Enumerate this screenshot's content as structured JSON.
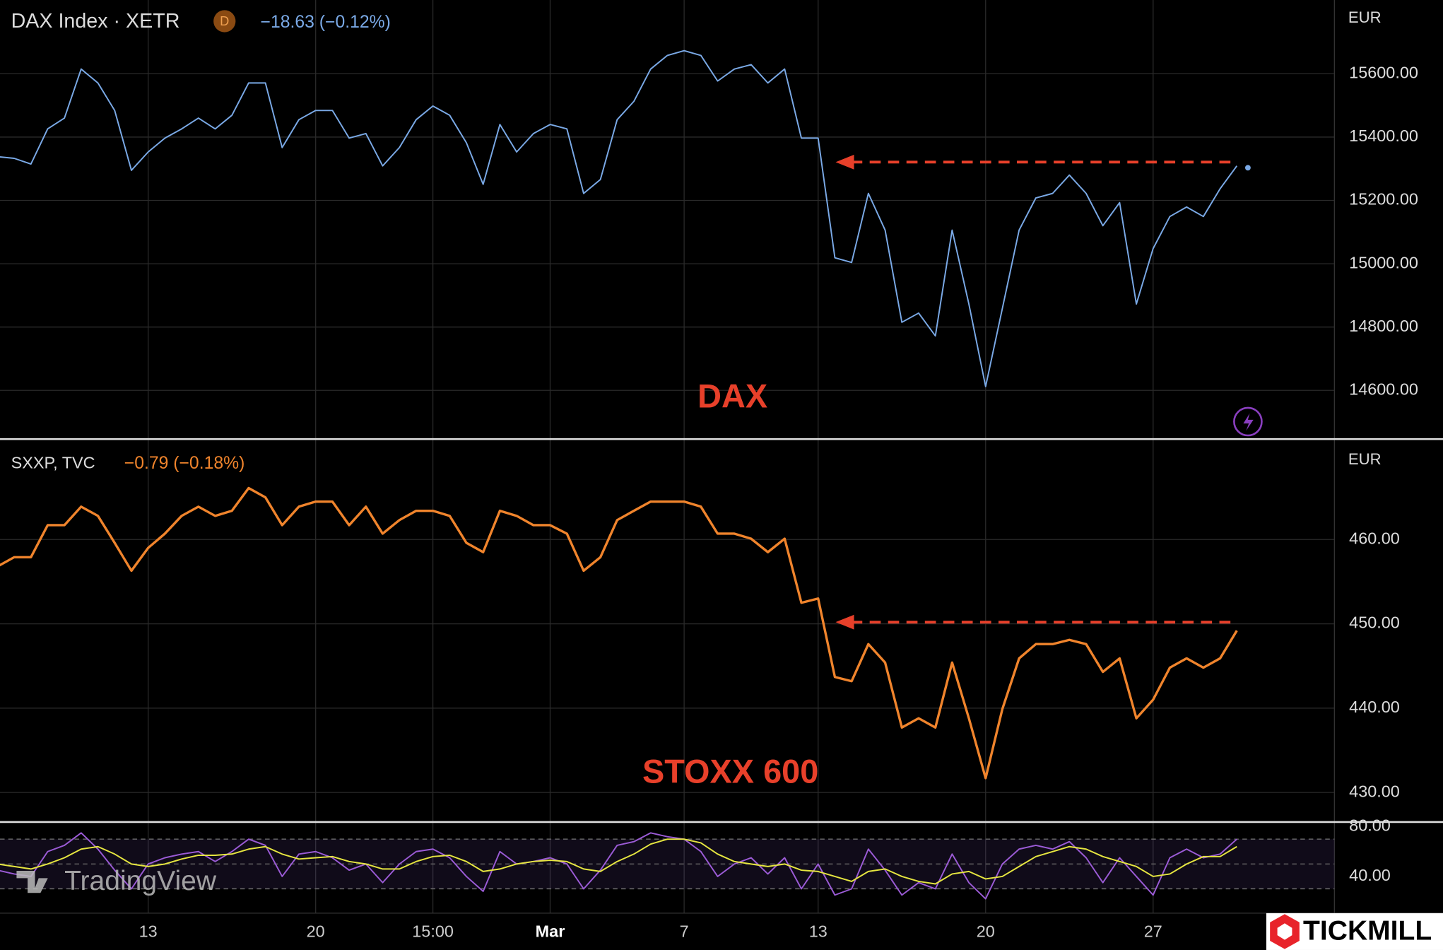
{
  "watermark": "TradingView",
  "logo": "TICKMILL",
  "chart_data": [
    {
      "type": "line",
      "title": "DAX Index · XETR",
      "badge": "D",
      "change": "−18.63 (−0.12%)",
      "annotation": "DAX",
      "currency": "EUR",
      "ylim": [
        14449,
        15833
      ],
      "yticks": [
        {
          "value": 14600,
          "label": "14600.00"
        },
        {
          "value": 14800,
          "label": "14800.00"
        },
        {
          "value": 15000,
          "label": "15000.00"
        },
        {
          "value": 15200,
          "label": "15200.00"
        },
        {
          "value": 15400,
          "label": "15400.00"
        },
        {
          "value": 15600,
          "label": "15600.00"
        }
      ],
      "arrow_level": 15321,
      "grid": true,
      "series": [
        {
          "color": "#7aa9e6",
          "values": [
            15338,
            15333,
            15315,
            15426,
            15460,
            15615,
            15571,
            15484,
            15295,
            15353,
            15397,
            15426,
            15460,
            15426,
            15469,
            15571,
            15571,
            15367,
            15455,
            15484,
            15484,
            15397,
            15411,
            15309,
            15367,
            15455,
            15498,
            15469,
            15382,
            15251,
            15440,
            15353,
            15411,
            15440,
            15426,
            15222,
            15266,
            15455,
            15513,
            15615,
            15658,
            15673,
            15658,
            15577,
            15615,
            15629,
            15571,
            15615,
            15397,
            15397,
            15019,
            15004,
            15222,
            15106,
            14815,
            14844,
            14772,
            15106,
            14873,
            14612,
            14859,
            15106,
            15208,
            15222,
            15280,
            15222,
            15120,
            15193,
            14873,
            15048,
            15149,
            15179,
            15149,
            15237,
            15309
          ]
        }
      ]
    },
    {
      "type": "line",
      "title": "SXXP, TVC",
      "change": "−0.79 (−0.18%)",
      "annotation": "STOXX 600",
      "currency": "EUR",
      "ylim": [
        426.6,
        471.8
      ],
      "yticks": [
        {
          "value": 430,
          "label": "430.00"
        },
        {
          "value": 440,
          "label": "440.00"
        },
        {
          "value": 450,
          "label": "450.00"
        },
        {
          "value": 460,
          "label": "460.00"
        }
      ],
      "arrow_level": 450.2,
      "grid": true,
      "series": [
        {
          "color": "#f0842c",
          "values": [
            456.8,
            457.9,
            457.9,
            461.7,
            461.7,
            463.9,
            462.8,
            459.6,
            456.3,
            459.0,
            460.7,
            462.8,
            463.9,
            462.8,
            463.4,
            466.1,
            465.0,
            461.7,
            463.9,
            464.5,
            464.5,
            461.7,
            463.9,
            460.7,
            462.3,
            463.4,
            463.4,
            462.8,
            459.6,
            458.5,
            463.4,
            462.8,
            461.7,
            461.7,
            460.7,
            456.3,
            457.9,
            462.3,
            463.4,
            464.5,
            464.5,
            464.5,
            463.9,
            460.7,
            460.7,
            460.1,
            458.5,
            460.1,
            452.5,
            453.0,
            443.7,
            443.2,
            447.6,
            445.4,
            437.7,
            438.8,
            437.7,
            445.4,
            438.8,
            431.7,
            439.9,
            445.9,
            447.6,
            447.6,
            448.1,
            447.6,
            444.3,
            445.9,
            438.8,
            441.0,
            444.8,
            445.9,
            444.8,
            445.9,
            449.2
          ]
        }
      ]
    },
    {
      "type": "line",
      "ylim": [
        11.9,
        83
      ],
      "yticks": [
        {
          "value": 40,
          "label": "40.00"
        },
        {
          "value": 80,
          "label": "80.00"
        }
      ],
      "band": [
        30,
        70
      ],
      "midline": 50,
      "categories": [
        null,
        null,
        null,
        null,
        null,
        null,
        null,
        null,
        null,
        "13",
        null,
        null,
        null,
        null,
        null,
        null,
        null,
        null,
        null,
        "20",
        null,
        null,
        null,
        null,
        null,
        null,
        "15:00",
        null,
        null,
        null,
        null,
        null,
        null,
        "Mar",
        null,
        null,
        null,
        null,
        null,
        null,
        null,
        "7",
        null,
        null,
        null,
        null,
        null,
        null,
        null,
        "13",
        null,
        null,
        null,
        null,
        null,
        null,
        null,
        null,
        null,
        "20",
        null,
        null,
        null,
        null,
        null,
        null,
        null,
        null,
        null,
        "27",
        null,
        null,
        null,
        null,
        null
      ],
      "series": [
        {
          "color": "#9b5bd6",
          "values": [
            45,
            42,
            40,
            60,
            65,
            75,
            62,
            45,
            30,
            50,
            55,
            58,
            60,
            52,
            60,
            70,
            65,
            40,
            58,
            60,
            55,
            45,
            50,
            35,
            50,
            60,
            62,
            55,
            40,
            28,
            60,
            50,
            52,
            55,
            50,
            30,
            45,
            65,
            68,
            75,
            72,
            70,
            60,
            40,
            50,
            55,
            42,
            55,
            30,
            50,
            25,
            30,
            62,
            45,
            25,
            35,
            30,
            58,
            35,
            22,
            50,
            62,
            65,
            62,
            68,
            55,
            35,
            55,
            40,
            25,
            55,
            62,
            55,
            58,
            70
          ]
        },
        {
          "color": "#e6e640",
          "values": [
            50,
            48,
            46,
            50,
            55,
            62,
            64,
            58,
            50,
            48,
            50,
            54,
            57,
            57,
            58,
            62,
            64,
            58,
            54,
            55,
            56,
            52,
            50,
            46,
            46,
            52,
            56,
            57,
            52,
            44,
            46,
            50,
            52,
            53,
            52,
            46,
            44,
            52,
            58,
            66,
            70,
            70,
            67,
            58,
            52,
            50,
            48,
            50,
            45,
            44,
            40,
            36,
            44,
            46,
            40,
            36,
            34,
            42,
            44,
            38,
            40,
            48,
            56,
            60,
            64,
            62,
            56,
            52,
            48,
            40,
            42,
            50,
            56,
            56,
            64
          ]
        }
      ]
    }
  ]
}
